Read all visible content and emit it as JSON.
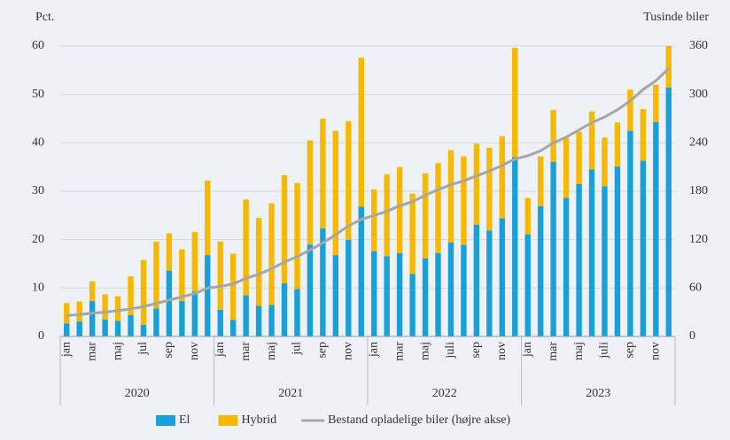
{
  "chart_data": {
    "type": "bar",
    "stacked": true,
    "y_label": "Pct.",
    "y2_label": "Tusinde biler",
    "categories": [
      "jan",
      null,
      "mar",
      null,
      "maj",
      null,
      "jul",
      null,
      "sep",
      null,
      "nov",
      null,
      "jan",
      null,
      "mar",
      null,
      "maj",
      null,
      "jul",
      null,
      "sep",
      null,
      "nov",
      null,
      "jan",
      null,
      "mar",
      null,
      "maj",
      null,
      "juli",
      null,
      "sep",
      null,
      "nov",
      null,
      "jan",
      null,
      "mar",
      null,
      "maj",
      null,
      "juli",
      null,
      "sep",
      null,
      "nov",
      null
    ],
    "x_groups": [
      "2020",
      "2021",
      "2022",
      "2023"
    ],
    "series": [
      {
        "name": "El",
        "color": "#1aa0d8",
        "values": [
          2.7,
          3.1,
          7.3,
          3.5,
          3.2,
          4.4,
          2.4,
          5.8,
          13.6,
          7.3,
          9.3,
          16.8,
          5.5,
          3.4,
          8.5,
          6.3,
          6.5,
          11.0,
          9.8,
          19.0,
          22.3,
          16.8,
          20.0,
          26.8,
          17.6,
          16.6,
          17.2,
          12.9,
          16.1,
          17.2,
          19.4,
          18.9,
          23.1,
          21.9,
          24.4,
          37.1,
          21.1,
          26.9,
          36.1,
          28.6,
          31.5,
          34.5,
          31.0,
          35.1,
          42.5,
          36.3,
          44.3,
          51.4
        ]
      },
      {
        "name": "Hybrid",
        "color": "#f6b800",
        "values": [
          4.2,
          4.1,
          4.1,
          5.2,
          5.1,
          8.0,
          13.4,
          13.8,
          7.7,
          10.7,
          12.3,
          15.4,
          14.1,
          13.7,
          19.8,
          18.2,
          21.0,
          22.3,
          21.9,
          21.5,
          22.7,
          25.7,
          24.5,
          30.8,
          12.8,
          16.9,
          17.8,
          16.6,
          17.6,
          18.6,
          19.1,
          18.3,
          16.7,
          17.1,
          17.0,
          22.5,
          7.5,
          10.3,
          10.7,
          12.4,
          10.8,
          12.0,
          10.1,
          9.1,
          8.5,
          10.7,
          7.7,
          8.6
        ]
      },
      {
        "name": "Bestand opladelige biler (højre akse)",
        "color": "#a6a6a6",
        "axis": "y2",
        "type": "line",
        "values": [
          26,
          27,
          29,
          30,
          32,
          34,
          37,
          41,
          45,
          49,
          53,
          60,
          62,
          65,
          72,
          77,
          84,
          92,
          99,
          107,
          116,
          126,
          137,
          145,
          150,
          155,
          162,
          167,
          175,
          182,
          188,
          193,
          199,
          205,
          212,
          220,
          224,
          230,
          240,
          247,
          256,
          265,
          272,
          281,
          292,
          306,
          317,
          332
        ]
      }
    ],
    "ylim": [
      0,
      60
    ],
    "yticks": [
      0,
      10,
      20,
      30,
      40,
      50,
      60
    ],
    "y2lim": [
      0,
      360
    ],
    "y2ticks": [
      0,
      60,
      120,
      180,
      240,
      300,
      360
    ],
    "grid": true,
    "legend": "bottom"
  }
}
